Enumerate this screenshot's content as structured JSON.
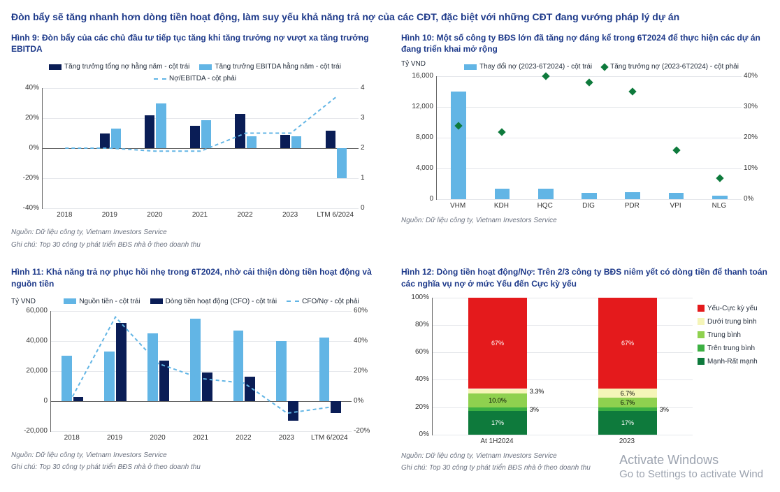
{
  "main_title": "Đòn bẩy sẽ tăng nhanh hơn dòng tiền hoạt động, làm suy yếu khả năng trả nợ của các CĐT, đặc biệt với những CĐT đang vướng pháp lý dự án",
  "colors": {
    "dark": "#0a1d56",
    "light": "#62b5e5",
    "green1": "#0e7a3c",
    "green2": "#3cb043",
    "green3": "#8fd14f",
    "yellow": "#f5f5b8",
    "red": "#e41a1c",
    "axis": "#666666",
    "grid": "#d1d5db",
    "title": "#1e3a8a",
    "note": "#6b7280"
  },
  "chart9": {
    "title": "Hình 9: Đòn bẩy của các chủ đầu tư tiếp tục tăng khi tăng trưởng nợ vượt xa tăng trưởng EBITDA",
    "type": "combo-bar-line",
    "legend": [
      {
        "label": "Tăng trưởng tổng nợ hằng năm - cột trái",
        "kind": "bar",
        "color": "#0a1d56"
      },
      {
        "label": "Tăng trưởng EBITDA hằng năm - cột trái",
        "kind": "bar",
        "color": "#62b5e5"
      },
      {
        "label": "Nợ/EBITDA - cột phải",
        "kind": "dash",
        "color": "#62b5e5"
      }
    ],
    "categories": [
      "2018",
      "2019",
      "2020",
      "2021",
      "2022",
      "2023",
      "LTM 6/2024"
    ],
    "left_axis": {
      "min": -40,
      "max": 40,
      "ticks": [
        -40,
        -20,
        0,
        20,
        40
      ],
      "suffix": "%"
    },
    "right_axis": {
      "min": 0,
      "max": 4,
      "ticks": [
        0,
        1,
        2,
        3,
        4
      ]
    },
    "series": {
      "dark": [
        null,
        10,
        22,
        15,
        23,
        9,
        12
      ],
      "light": [
        null,
        13,
        30,
        19,
        8,
        8,
        -20
      ],
      "line": [
        2.0,
        2.0,
        1.9,
        1.9,
        2.5,
        2.5,
        3.7
      ]
    },
    "notes": [
      "Nguồn: Dữ liệu công ty, Vietnam Investors Service",
      "Ghi chú: Top 30 công ty phát triển BĐS nhà ở theo doanh thu"
    ]
  },
  "chart10": {
    "title": "Hình 10: Một số công ty BĐS lớn đã tăng nợ đáng kể trong 6T2024 để thực hiện các dự án đang triển khai mở rộng",
    "type": "bar-scatter",
    "unit_left": "Tỷ VND",
    "legend": [
      {
        "label": "Thay đổi nợ (2023-6T2024) - cột trái",
        "kind": "bar",
        "color": "#62b5e5"
      },
      {
        "label": "Tăng trưởng nợ (2023-6T2024) - cột phải",
        "kind": "diamond",
        "color": "#0e7a3c"
      }
    ],
    "categories": [
      "VHM",
      "KDH",
      "HQC",
      "DIG",
      "PDR",
      "VPI",
      "NLG"
    ],
    "left_axis": {
      "min": 0,
      "max": 16000,
      "ticks": [
        0,
        4000,
        8000,
        12000,
        16000
      ]
    },
    "right_axis": {
      "min": 0,
      "max": 40,
      "ticks": [
        0,
        10,
        20,
        30,
        40
      ],
      "suffix": "%"
    },
    "series": {
      "bars": [
        14000,
        1400,
        1400,
        850,
        900,
        850,
        450
      ],
      "points": [
        24,
        22,
        40,
        38,
        35,
        16,
        7
      ]
    },
    "notes": [
      "Nguồn: Dữ liệu công ty, Vietnam Investors Service"
    ]
  },
  "chart11": {
    "title": "Hình 11: Khả năng trả nợ phục hồi nhẹ trong 6T2024, nhờ cải thiện dòng tiền hoạt động và nguồn tiền",
    "type": "combo-bar-line",
    "unit_left": "Tỷ VND",
    "legend": [
      {
        "label": "Nguồn tiền - cột trái",
        "kind": "bar",
        "color": "#62b5e5"
      },
      {
        "label": "Dòng tiền hoạt động (CFO) - cột trái",
        "kind": "bar",
        "color": "#0a1d56"
      },
      {
        "label": "CFO/Nợ - cột phải",
        "kind": "dash",
        "color": "#62b5e5"
      }
    ],
    "categories": [
      "2018",
      "2019",
      "2020",
      "2021",
      "2022",
      "2023",
      "LTM 6/2024"
    ],
    "left_axis": {
      "min": -20000,
      "max": 60000,
      "ticks": [
        -20000,
        0,
        20000,
        40000,
        60000
      ]
    },
    "right_axis": {
      "min": -20,
      "max": 60,
      "ticks": [
        -20,
        0,
        20,
        40,
        60
      ],
      "suffix": "%"
    },
    "series": {
      "light": [
        30000,
        33000,
        45000,
        55000,
        47000,
        40000,
        42000
      ],
      "dark": [
        2500,
        52000,
        27000,
        19000,
        16000,
        -13000,
        -8000
      ],
      "line": [
        3,
        56,
        25,
        15,
        12,
        -8,
        -4
      ]
    },
    "notes": [
      "Nguồn: Dữ liệu công ty, Vietnam Investors Service",
      "Ghi chú: Top 30 công ty phát triển BĐS nhà ở theo doanh thu"
    ]
  },
  "chart12": {
    "title": "Hình 12:  Dòng tiền hoạt động/Nợ: Trên 2/3 công ty BĐS niêm yết có dòng tiền để thanh toán các nghĩa vụ nợ ở mức Yếu đến Cực kỳ yếu",
    "type": "stacked-bar",
    "categories": [
      "At 1H2024",
      "2023"
    ],
    "left_axis": {
      "min": 0,
      "max": 100,
      "ticks": [
        0,
        20,
        40,
        60,
        80,
        100
      ],
      "suffix": "%"
    },
    "legend": [
      {
        "label": "Yếu-Cực kỳ yếu",
        "color": "#e41a1c"
      },
      {
        "label": "Dưới trung bình",
        "color": "#f5f5b8"
      },
      {
        "label": "Trung bình",
        "color": "#8fd14f"
      },
      {
        "label": "Trên trung bình",
        "color": "#3cb043"
      },
      {
        "label": "Mạnh-Rất mạnh",
        "color": "#0e7a3c"
      }
    ],
    "stacks": [
      [
        {
          "v": 17,
          "c": "#0e7a3c",
          "t": "17%",
          "tc": "#fff"
        },
        {
          "v": 3,
          "c": "#3cb043",
          "t": "3%",
          "tc": "#000"
        },
        {
          "v": 10,
          "c": "#8fd14f",
          "t": "10.0%",
          "tc": "#000"
        },
        {
          "v": 3.3,
          "c": "#f5f5b8",
          "t": "3.3%",
          "tc": "#000"
        },
        {
          "v": 66.7,
          "c": "#e41a1c",
          "t": "67%",
          "tc": "#fff"
        }
      ],
      [
        {
          "v": 17,
          "c": "#0e7a3c",
          "t": "17%",
          "tc": "#fff"
        },
        {
          "v": 3,
          "c": "#3cb043",
          "t": "3%",
          "tc": "#000"
        },
        {
          "v": 6.7,
          "c": "#8fd14f",
          "t": "6.7%",
          "tc": "#000"
        },
        {
          "v": 6.7,
          "c": "#f5f5b8",
          "t": "6.7%",
          "tc": "#000"
        },
        {
          "v": 66.6,
          "c": "#e41a1c",
          "t": "67%",
          "tc": "#fff"
        }
      ]
    ],
    "notes": [
      "Nguồn: Dữ liệu công ty, Vietnam Investors Service",
      "Ghi chú: Top 30 công ty phát triển BĐS nhà ở theo doanh thu"
    ]
  },
  "watermark": {
    "l1": "Activate Windows",
    "l2": "Go to Settings to activate Wind"
  }
}
